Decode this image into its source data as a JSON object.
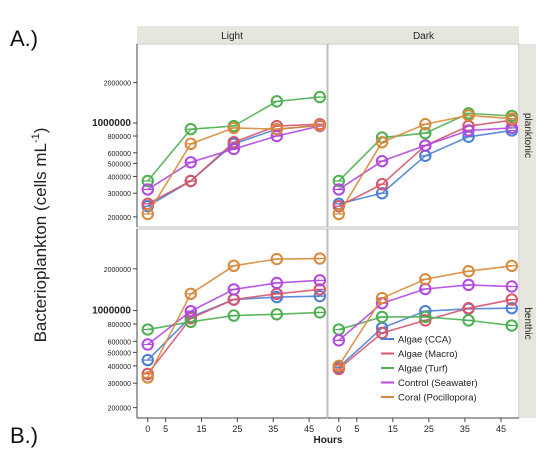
{
  "figure": {
    "label_a": "A.)",
    "label_b": "B.)"
  },
  "chart_data": {
    "type": "line",
    "ylabel_main": "Bacterioplankton (cells mL",
    "ylabel_sup": "-1",
    "ylabel_close": ")",
    "xlabel": "Hours",
    "x": [
      0,
      12,
      24,
      36,
      48
    ],
    "x_ticks": [
      0,
      5,
      15,
      25,
      35,
      45
    ],
    "x_range": [
      -3,
      50
    ],
    "y_scale": "log",
    "y_range": [
      180000,
      3500000
    ],
    "y_ticks": [
      {
        "value": 200000,
        "label": "200000",
        "major": false
      },
      {
        "value": 300000,
        "label": "300000",
        "major": false
      },
      {
        "value": 400000,
        "label": "400000",
        "major": false
      },
      {
        "value": 500000,
        "label": "500000",
        "major": false
      },
      {
        "value": 600000,
        "label": "600000",
        "major": false
      },
      {
        "value": 800000,
        "label": "800000",
        "major": false
      },
      {
        "value": 1000000,
        "label": "1000000",
        "major": true
      },
      {
        "value": 2000000,
        "label": "2000000",
        "major": false
      }
    ],
    "columns": [
      "Light",
      "Dark"
    ],
    "rows": [
      "planktonic",
      "benthic"
    ],
    "grid": false,
    "legend_placement": "bottom-right",
    "series_meta": [
      {
        "name": "Algae (CCA)",
        "color": "#4a7fd6"
      },
      {
        "name": "Algae (Macro)",
        "color": "#d8556b"
      },
      {
        "name": "Algae (Turf)",
        "color": "#4caf50"
      },
      {
        "name": "Control (Seawater)",
        "color": "#b347e0"
      },
      {
        "name": "Coral (Pocillopora)",
        "color": "#d8893a"
      }
    ],
    "panels": [
      {
        "row": "planktonic",
        "column": "Light",
        "series": [
          {
            "name": "Algae (CCA)",
            "values": [
              240000,
              370000,
              700000,
              900000,
              960000
            ]
          },
          {
            "name": "Algae (Macro)",
            "values": [
              250000,
              370000,
              720000,
              950000,
              980000
            ]
          },
          {
            "name": "Algae (Turf)",
            "values": [
              370000,
              900000,
              950000,
              1450000,
              1560000
            ]
          },
          {
            "name": "Control (Seawater)",
            "values": [
              320000,
              510000,
              640000,
              800000,
              950000
            ]
          },
          {
            "name": "Coral (Pocillopora)",
            "values": [
              210000,
              700000,
              920000,
              900000,
              960000
            ]
          }
        ]
      },
      {
        "row": "planktonic",
        "column": "Dark",
        "series": [
          {
            "name": "Algae (CCA)",
            "values": [
              250000,
              300000,
              570000,
              790000,
              880000
            ]
          },
          {
            "name": "Algae (Macro)",
            "values": [
              240000,
              350000,
              680000,
              950000,
              1050000
            ]
          },
          {
            "name": "Algae (Turf)",
            "values": [
              370000,
              780000,
              840000,
              1180000,
              1130000
            ]
          },
          {
            "name": "Control (Seawater)",
            "values": [
              320000,
              520000,
              680000,
              880000,
              920000
            ]
          },
          {
            "name": "Coral (Pocillopora)",
            "values": [
              210000,
              720000,
              980000,
              1140000,
              1080000
            ]
          }
        ]
      },
      {
        "row": "benthic",
        "column": "Light",
        "series": [
          {
            "name": "Algae (CCA)",
            "values": [
              440000,
              900000,
              1200000,
              1250000,
              1270000
            ]
          },
          {
            "name": "Algae (Macro)",
            "values": [
              350000,
              880000,
              1200000,
              1320000,
              1420000
            ]
          },
          {
            "name": "Algae (Turf)",
            "values": [
              730000,
              830000,
              920000,
              940000,
              970000
            ]
          },
          {
            "name": "Control (Seawater)",
            "values": [
              570000,
              990000,
              1420000,
              1580000,
              1650000
            ]
          },
          {
            "name": "Coral (Pocillopora)",
            "values": [
              330000,
              1320000,
              2100000,
              2350000,
              2370000
            ]
          }
        ]
      },
      {
        "row": "benthic",
        "column": "Dark",
        "series": [
          {
            "name": "Algae (CCA)",
            "values": [
              390000,
              750000,
              990000,
              1030000,
              1040000
            ]
          },
          {
            "name": "Algae (Macro)",
            "values": [
              380000,
              690000,
              850000,
              1040000,
              1200000
            ]
          },
          {
            "name": "Algae (Turf)",
            "values": [
              730000,
              900000,
              900000,
              850000,
              780000
            ]
          },
          {
            "name": "Control (Seawater)",
            "values": [
              610000,
              1130000,
              1430000,
              1530000,
              1490000
            ]
          },
          {
            "name": "Coral (Pocillopora)",
            "values": [
              400000,
              1230000,
              1680000,
              1920000,
              2100000
            ]
          }
        ]
      }
    ]
  }
}
